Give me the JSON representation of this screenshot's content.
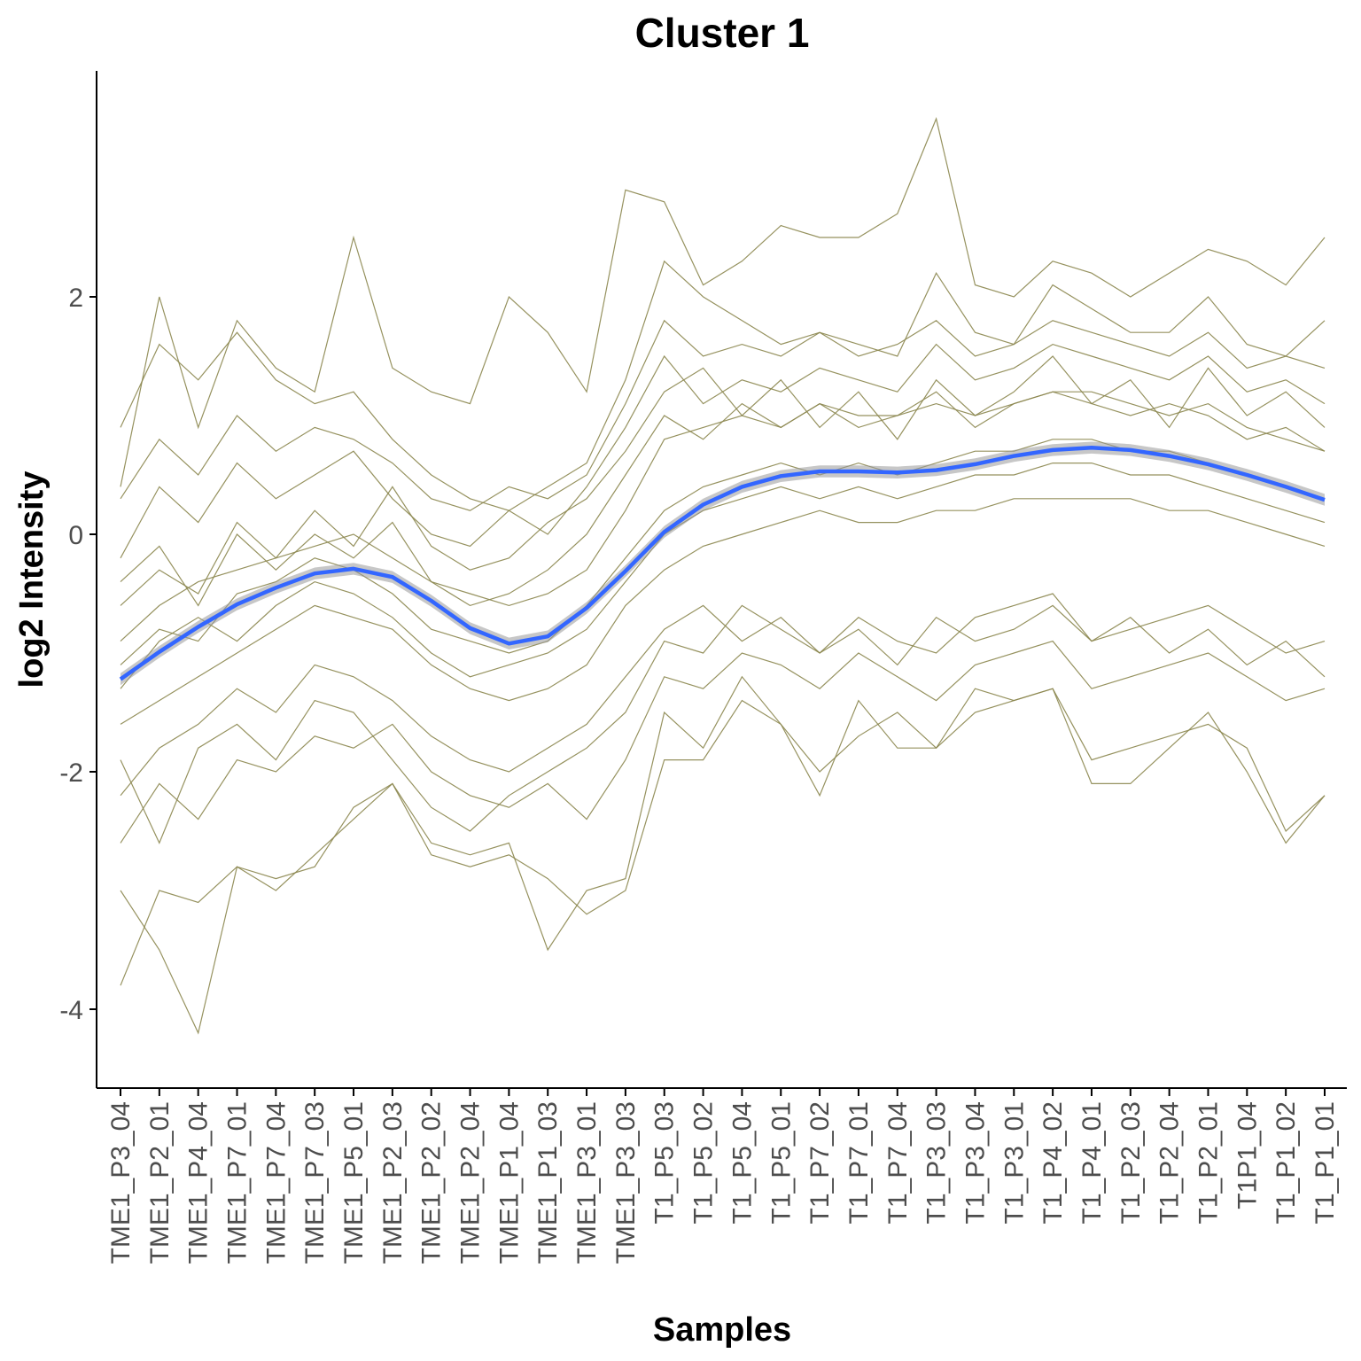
{
  "chart_data": {
    "type": "line",
    "title": "Cluster 1",
    "xlabel": "Samples",
    "ylabel": "log2 Intensity",
    "categories": [
      "TME1_P3_04",
      "TME1_P2_01",
      "TME1_P4_04",
      "TME1_P7_01",
      "TME1_P7_04",
      "TME1_P7_03",
      "TME1_P5_01",
      "TME1_P2_03",
      "TME1_P2_02",
      "TME1_P2_04",
      "TME1_P1_04",
      "TME1_P1_03",
      "TME1_P3_01",
      "TME1_P3_03",
      "T1_P5_03",
      "T1_P5_02",
      "T1_P5_04",
      "T1_P5_01",
      "T1_P7_02",
      "T1_P7_01",
      "T1_P7_04",
      "T1_P3_03",
      "T1_P3_04",
      "T1_P3_01",
      "T1_P4_02",
      "T1_P4_01",
      "T1_P2_03",
      "T1_P2_04",
      "T1_P2_01",
      "T1P1_04",
      "T1_P1_02",
      "T1_P1_01"
    ],
    "ylim": [
      -4.6,
      3.9
    ],
    "yticks": [
      -4,
      -2,
      0,
      2
    ],
    "grid": false,
    "profile_color": "#8B864E",
    "trend_color": "#3366FF",
    "ribbon_color": "#999999",
    "series": [
      {
        "values": [
          -0.9,
          -0.6,
          -0.4,
          -0.3,
          -0.2,
          -0.1,
          0.0,
          -0.2,
          -0.4,
          -0.5,
          -0.6,
          -0.5,
          -0.3,
          0.2,
          0.8,
          0.9,
          1.0,
          0.9,
          1.1,
          1.0,
          1.0,
          1.1,
          1.0,
          1.1,
          1.2,
          1.2,
          1.1,
          1.0,
          1.1,
          0.9,
          0.8,
          0.7
        ]
      },
      {
        "values": [
          -1.6,
          -1.4,
          -1.2,
          -1.0,
          -0.8,
          -0.6,
          -0.7,
          -0.8,
          -1.1,
          -1.3,
          -1.4,
          -1.3,
          -1.1,
          -0.6,
          -0.3,
          -0.1,
          0.0,
          0.1,
          0.2,
          0.1,
          0.1,
          0.2,
          0.2,
          0.3,
          0.3,
          0.3,
          0.3,
          0.2,
          0.2,
          0.1,
          0.0,
          -0.1
        ]
      },
      {
        "values": [
          0.9,
          1.6,
          1.3,
          1.7,
          1.3,
          1.1,
          1.2,
          0.8,
          0.5,
          0.3,
          0.2,
          0.4,
          0.6,
          1.3,
          2.3,
          2.0,
          1.8,
          1.6,
          1.7,
          1.6,
          1.5,
          2.2,
          1.7,
          1.6,
          2.1,
          1.9,
          1.7,
          1.7,
          2.0,
          1.6,
          1.5,
          1.8
        ]
      },
      {
        "values": [
          -3.8,
          -3.0,
          -3.1,
          -2.8,
          -3.0,
          -2.7,
          -2.4,
          -2.1,
          -2.7,
          -2.8,
          -2.7,
          -2.9,
          -3.2,
          -3.0,
          -1.9,
          -1.9,
          -1.4,
          -1.6,
          -2.0,
          -1.7,
          -1.5,
          -1.8,
          -1.5,
          -1.4,
          -1.3,
          -1.9,
          -1.8,
          -1.7,
          -1.6,
          -1.8,
          -2.5,
          -2.2
        ]
      },
      {
        "values": [
          -0.6,
          -0.3,
          -0.5,
          0.1,
          -0.2,
          0.2,
          -0.1,
          0.4,
          -0.1,
          -0.3,
          -0.2,
          0.1,
          0.3,
          0.7,
          1.2,
          1.4,
          1.0,
          1.3,
          0.9,
          1.2,
          0.8,
          1.3,
          1.0,
          1.2,
          1.5,
          1.1,
          1.3,
          0.9,
          1.4,
          1.0,
          1.2,
          0.9
        ]
      },
      {
        "values": [
          -2.2,
          -1.8,
          -1.6,
          -1.3,
          -1.5,
          -1.1,
          -1.2,
          -1.4,
          -1.7,
          -1.9,
          -2.0,
          -1.8,
          -1.6,
          -1.2,
          -0.8,
          -0.6,
          -0.9,
          -0.7,
          -1.0,
          -0.8,
          -1.1,
          -0.7,
          -0.9,
          -0.8,
          -0.6,
          -0.9,
          -0.7,
          -1.0,
          -0.8,
          -1.1,
          -0.9,
          -1.2
        ]
      },
      {
        "values": [
          0.4,
          2.0,
          0.9,
          1.8,
          1.4,
          1.2,
          2.5,
          1.4,
          1.2,
          1.1,
          2.0,
          1.7,
          1.2,
          2.9,
          2.8,
          2.1,
          2.3,
          2.6,
          2.5,
          2.5,
          2.7,
          3.5,
          2.1,
          2.0,
          2.3,
          2.2,
          2.0,
          2.2,
          2.4,
          2.3,
          2.1,
          2.5
        ]
      },
      {
        "values": [
          -3.0,
          -3.5,
          -4.2,
          -2.8,
          -2.9,
          -2.8,
          -2.3,
          -2.1,
          -2.6,
          -2.7,
          -2.6,
          -3.5,
          -3.0,
          -2.9,
          -1.5,
          -1.8,
          -1.2,
          -1.6,
          -2.2,
          -1.4,
          -1.8,
          -1.8,
          -1.3,
          -1.4,
          -1.3,
          -2.1,
          -2.1,
          -1.8,
          -1.5,
          -2.0,
          -2.6,
          -2.2
        ]
      },
      {
        "values": [
          -1.1,
          -0.8,
          -0.9,
          -0.5,
          -0.4,
          -0.2,
          -0.3,
          -0.5,
          -0.8,
          -0.9,
          -1.0,
          -0.9,
          -0.6,
          -0.2,
          0.2,
          0.4,
          0.5,
          0.6,
          0.5,
          0.6,
          0.5,
          0.6,
          0.7,
          0.7,
          0.8,
          0.8,
          0.7,
          0.7,
          0.6,
          0.5,
          0.4,
          0.3
        ]
      },
      {
        "values": [
          -0.2,
          0.4,
          0.1,
          0.6,
          0.3,
          0.5,
          0.7,
          0.3,
          0.0,
          -0.1,
          0.2,
          0.0,
          0.4,
          0.9,
          1.5,
          1.1,
          1.3,
          1.2,
          1.4,
          1.3,
          1.2,
          1.6,
          1.3,
          1.4,
          1.6,
          1.5,
          1.4,
          1.3,
          1.5,
          1.2,
          1.3,
          1.1
        ]
      },
      {
        "values": [
          -2.6,
          -2.1,
          -2.4,
          -1.9,
          -2.0,
          -1.7,
          -1.8,
          -1.6,
          -2.0,
          -2.2,
          -2.3,
          -2.1,
          -2.4,
          -1.9,
          -1.2,
          -1.3,
          -1.0,
          -1.1,
          -1.3,
          -1.0,
          -1.2,
          -1.4,
          -1.1,
          -1.0,
          -0.9,
          -1.3,
          -1.2,
          -1.1,
          -1.0,
          -1.2,
          -1.4,
          -1.3
        ]
      },
      {
        "values": [
          -1.3,
          -0.9,
          -0.7,
          -0.9,
          -0.6,
          -0.4,
          -0.5,
          -0.7,
          -1.0,
          -1.2,
          -1.1,
          -1.0,
          -0.8,
          -0.4,
          0.0,
          0.2,
          0.3,
          0.4,
          0.3,
          0.4,
          0.3,
          0.4,
          0.5,
          0.5,
          0.6,
          0.6,
          0.5,
          0.5,
          0.4,
          0.3,
          0.2,
          0.1
        ]
      },
      {
        "values": [
          0.3,
          0.8,
          0.5,
          1.0,
          0.7,
          0.9,
          0.8,
          0.6,
          0.3,
          0.2,
          0.4,
          0.3,
          0.5,
          1.1,
          1.8,
          1.5,
          1.6,
          1.5,
          1.7,
          1.5,
          1.6,
          1.8,
          1.5,
          1.6,
          1.8,
          1.7,
          1.6,
          1.5,
          1.7,
          1.4,
          1.5,
          1.4
        ]
      },
      {
        "values": [
          -1.9,
          -2.6,
          -1.8,
          -1.6,
          -1.9,
          -1.4,
          -1.5,
          -1.9,
          -2.3,
          -2.5,
          -2.2,
          -2.0,
          -1.8,
          -1.5,
          -0.9,
          -1.0,
          -0.6,
          -0.8,
          -1.0,
          -0.7,
          -0.9,
          -1.0,
          -0.7,
          -0.6,
          -0.5,
          -0.9,
          -0.8,
          -0.7,
          -0.6,
          -0.8,
          -1.0,
          -0.9
        ]
      },
      {
        "values": [
          -0.4,
          -0.1,
          -0.6,
          0.0,
          -0.3,
          0.0,
          -0.2,
          0.1,
          -0.4,
          -0.6,
          -0.5,
          -0.3,
          0.0,
          0.5,
          1.0,
          0.8,
          1.1,
          0.9,
          1.1,
          0.9,
          1.0,
          1.2,
          0.9,
          1.1,
          1.2,
          1.1,
          1.0,
          1.1,
          1.0,
          0.8,
          0.9,
          0.7
        ]
      }
    ],
    "trend": [
      -1.22,
      -0.99,
      -0.78,
      -0.59,
      -0.45,
      -0.33,
      -0.29,
      -0.36,
      -0.56,
      -0.79,
      -0.92,
      -0.86,
      -0.62,
      -0.31,
      0.02,
      0.25,
      0.4,
      0.49,
      0.53,
      0.53,
      0.52,
      0.54,
      0.59,
      0.66,
      0.71,
      0.73,
      0.71,
      0.66,
      0.59,
      0.5,
      0.4,
      0.29
    ]
  }
}
